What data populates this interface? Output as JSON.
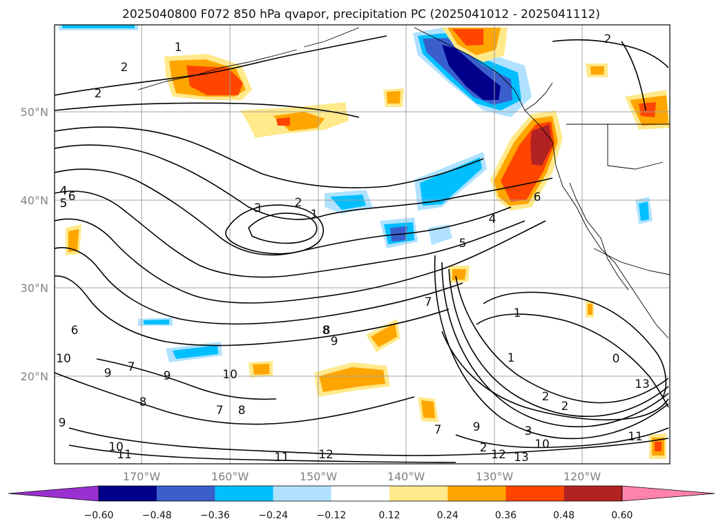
{
  "title": "2025040800 F072 850 hPa qvapor, precipitation PC (2025041012 - 2025041112)",
  "lat_labels": [
    "50°N",
    "40°N",
    "30°N",
    "20°N"
  ],
  "lon_labels": [
    "170°W",
    "160°W",
    "150°W",
    "140°W",
    "130°W",
    "120°W"
  ],
  "colorbar": {
    "ticks": [
      "−0.60",
      "−0.48",
      "−0.36",
      "−0.24",
      "−0.12",
      "0.12",
      "0.24",
      "0.36",
      "0.48",
      "0.60"
    ],
    "colors": [
      "#9b30d0",
      "#00008b",
      "#3a5fcd",
      "#00bfff",
      "#b0e2ff",
      "#ffffff",
      "#ffe98a",
      "#ffa500",
      "#ff4500",
      "#b22222",
      "#ff82ab"
    ]
  },
  "contour_labels": [
    "1",
    "2",
    "2",
    "2",
    "3",
    "2",
    "1",
    "4",
    "5",
    "6",
    "4",
    "5",
    "6",
    "7",
    "8",
    "9",
    "10",
    "9",
    "9",
    "7",
    "10",
    "8",
    "7",
    "8",
    "9",
    "10",
    "11",
    "11",
    "12",
    "12",
    "13",
    "1",
    "1",
    "2",
    "2",
    "3",
    "10",
    "11",
    "13",
    "0",
    "2",
    "9",
    "7",
    "6",
    "4",
    "5",
    "8"
  ]
}
